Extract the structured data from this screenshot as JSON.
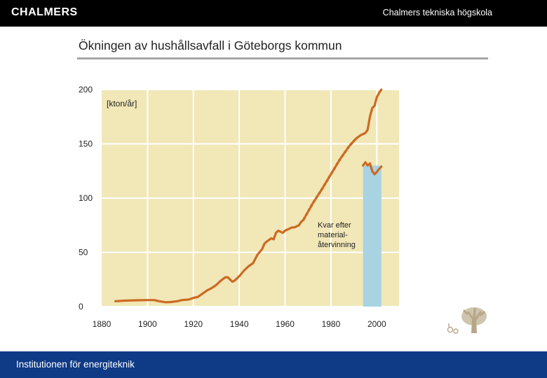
{
  "header": {
    "logo": "CHALMERS",
    "university": "Chalmers tekniska högskola"
  },
  "slide": {
    "title": "Ökningen av hushållsavfall i Göteborgs kommun"
  },
  "footer": {
    "text": "Institutionen för energiteknik"
  },
  "colors": {
    "header_bg": "#000000",
    "footer_bg": "#0e3a86",
    "plot_bg": "#f1e7b7",
    "grid": "#ffffff",
    "line": "#cc6a22",
    "bar": "#a8d3e2"
  },
  "decor": {
    "tree_icon": "tree-logo-icon"
  },
  "chart_data": {
    "type": "line",
    "title": "",
    "xlabel": "",
    "ylabel": "",
    "unit_label": "[kton/år]",
    "xlim": [
      1880,
      2010
    ],
    "ylim": [
      0,
      200
    ],
    "x_ticks": [
      1880,
      1900,
      1920,
      1940,
      1960,
      1980,
      2000
    ],
    "y_ticks": [
      0,
      50,
      100,
      150,
      200
    ],
    "x_tick_labels": [
      "1880",
      "1900",
      "1920",
      "1940",
      "1960",
      "1980",
      "2000"
    ],
    "y_tick_labels": [
      "0",
      "50",
      "100",
      "150",
      "200"
    ],
    "grid": true,
    "series": [
      {
        "style": "solid",
        "x": [
          1886,
          1890,
          1895,
          1900,
          1903,
          1905,
          1908,
          1910,
          1913,
          1915,
          1918,
          1920,
          1922,
          1924,
          1926,
          1928,
          1930,
          1932,
          1934,
          1935,
          1936,
          1937,
          1938,
          1940,
          1942,
          1944,
          1946,
          1948,
          1950,
          1951,
          1952,
          1954,
          1955,
          1956,
          1957,
          1958,
          1959,
          1960,
          1962,
          1963,
          1964,
          1966,
          1967,
          1968
        ],
        "y": [
          5,
          5.5,
          5.8,
          6,
          6,
          5,
          4,
          4.2,
          5,
          6,
          6.5,
          8,
          9,
          12,
          15,
          17,
          20,
          24,
          27,
          27,
          25,
          23,
          24,
          28,
          33,
          37,
          40,
          48,
          53,
          58,
          60,
          63,
          62,
          68,
          70,
          69,
          68,
          70,
          72,
          73,
          73,
          75,
          78,
          80
        ]
      },
      {
        "style": "dashed",
        "x": [
          1968,
          1972,
          1976,
          1980,
          1984,
          1988,
          1991
        ],
        "y": [
          80,
          95,
          108,
          122,
          136,
          148,
          155
        ]
      },
      {
        "style": "solid",
        "x": [
          1991,
          1993,
          1995,
          1996,
          1997,
          1998,
          1999,
          2000,
          2001,
          2002
        ],
        "y": [
          155,
          158,
          160,
          163,
          175,
          183,
          185,
          193,
          197,
          200
        ]
      },
      {
        "name": "Kvar efter materialåtervinning",
        "style": "solid",
        "x": [
          1994,
          1995,
          1996,
          1997,
          1998,
          1999,
          2000,
          2001,
          2002
        ],
        "y": [
          130,
          133,
          130,
          132,
          125,
          122,
          124,
          127,
          129
        ]
      }
    ],
    "bars": [
      {
        "x_start": 1994,
        "x_end": 2002,
        "value": 130
      }
    ],
    "annotations": [
      {
        "lines": [
          "Kvar efter",
          "material-",
          "återvinning"
        ]
      }
    ]
  }
}
